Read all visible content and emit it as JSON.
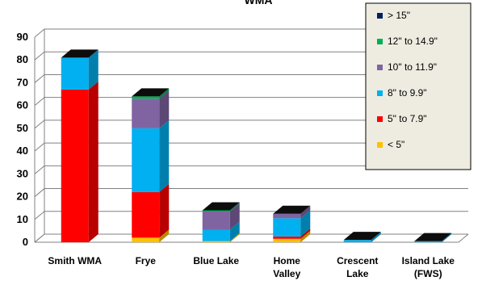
{
  "chart_data": {
    "type": "bar",
    "stacked": true,
    "three_d": true,
    "title": "WMA",
    "ylim": [
      0,
      90
    ],
    "yticks": [
      0,
      10,
      20,
      30,
      40,
      50,
      60,
      70,
      80,
      90
    ],
    "grid": true,
    "legend_position": "top-right",
    "categories": [
      "Smith WMA",
      "Frye",
      "Blue Lake",
      "Home Valley",
      "Crescent Lake",
      "Island Lake (FWS)"
    ],
    "category_lines": [
      [
        "Smith WMA"
      ],
      [
        "Frye"
      ],
      [
        "Blue Lake"
      ],
      [
        "Home",
        "Valley"
      ],
      [
        "Crescent",
        "Lake"
      ],
      [
        "Island Lake",
        "(FWS)"
      ]
    ],
    "series": [
      {
        "name": "< 5\"",
        "color": "#FFC000",
        "values": [
          0,
          2,
          0.5,
          1.5,
          0,
          0
        ]
      },
      {
        "name": "5\" to 7.9\"",
        "color": "#FF0000",
        "values": [
          67,
          20,
          0,
          1,
          0,
          0
        ]
      },
      {
        "name": "8\" to 9.9\"",
        "color": "#00B0F0",
        "values": [
          14,
          28,
          5,
          8,
          1,
          0.5
        ]
      },
      {
        "name": "10\" to 11.9\"",
        "color": "#8064A2",
        "values": [
          0,
          13,
          8,
          2,
          0,
          0
        ]
      },
      {
        "name": "12\" to 14.9\"",
        "color": "#00B050",
        "values": [
          0,
          1,
          0.5,
          0,
          0,
          0
        ]
      },
      {
        "name": "> 15\"",
        "color": "#002060",
        "values": [
          0,
          0,
          0,
          0,
          0,
          0
        ]
      }
    ],
    "legend_order": [
      "> 15\"",
      "12\" to 14.9\"",
      "10\" to 11.9\"",
      "8\" to 9.9\"",
      "5\" to 7.9\"",
      "< 5\""
    ]
  }
}
